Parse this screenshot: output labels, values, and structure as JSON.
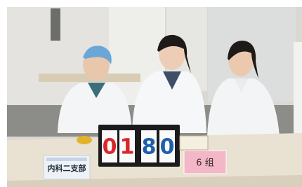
{
  "nameplate": "内科二支部",
  "scoreboard": {
    "digits": [
      "0",
      "1",
      "8",
      "0"
    ]
  },
  "group_sign": "6 组"
}
